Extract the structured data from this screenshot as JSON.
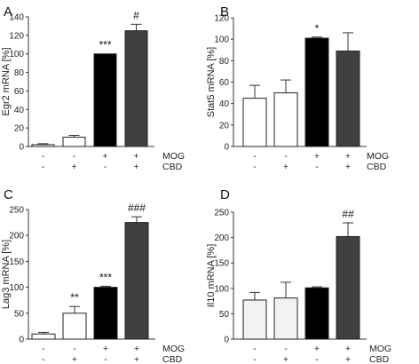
{
  "chart_data": [
    {
      "type": "bar",
      "panel_label": "A",
      "ylabel": "Egr2 mRNA [%]",
      "ylim": [
        0,
        140
      ],
      "yticks": [
        0,
        20,
        40,
        60,
        80,
        100,
        120,
        140
      ],
      "values": [
        2,
        10,
        100,
        125
      ],
      "errors": [
        1,
        2,
        0,
        7
      ],
      "annotations": [
        "",
        "",
        "***",
        "#"
      ],
      "colors": [
        "#ffffff",
        "#ffffff",
        "#000000",
        "#404040"
      ],
      "conditions": [
        {
          "label": "MOG",
          "signs": [
            "-",
            "-",
            "+",
            "+"
          ]
        },
        {
          "label": "CBD",
          "signs": [
            "-",
            "+",
            "-",
            "+"
          ]
        }
      ]
    },
    {
      "type": "bar",
      "panel_label": "B",
      "ylabel": "Stat5 mRNA [%]",
      "ylim": [
        0,
        120
      ],
      "yticks": [
        0,
        20,
        40,
        60,
        80,
        100,
        120
      ],
      "values": [
        45,
        50,
        101,
        89
      ],
      "errors": [
        12,
        12,
        1,
        17
      ],
      "annotations": [
        "",
        "",
        "*",
        ""
      ],
      "colors": [
        "#ffffff",
        "#ffffff",
        "#000000",
        "#404040"
      ],
      "conditions": [
        {
          "label": "MOG",
          "signs": [
            "-",
            "-",
            "+",
            "+"
          ]
        },
        {
          "label": "CBD",
          "signs": [
            "-",
            "+",
            "-",
            "+"
          ]
        }
      ]
    },
    {
      "type": "bar",
      "panel_label": "C",
      "ylabel": "Lag3 mRNA [%]",
      "ylim": [
        0,
        250
      ],
      "yticks": [
        0,
        50,
        100,
        150,
        200,
        250
      ],
      "values": [
        10,
        50,
        100,
        225
      ],
      "errors": [
        3,
        13,
        2,
        11
      ],
      "annotations": [
        "",
        "**",
        "***",
        "###"
      ],
      "colors": [
        "#ffffff",
        "#ffffff",
        "#000000",
        "#404040"
      ],
      "conditions": [
        {
          "label": "MOG",
          "signs": [
            "-",
            "-",
            "+",
            "+"
          ]
        },
        {
          "label": "CBD",
          "signs": [
            "-",
            "+",
            "-",
            "+"
          ]
        }
      ]
    },
    {
      "type": "bar",
      "panel_label": "D",
      "ylabel": "Il10 mRNA [%]",
      "ylim": [
        0,
        250
      ],
      "yticks": [
        0,
        50,
        100,
        150,
        200,
        250
      ],
      "values": [
        77,
        81,
        101,
        202
      ],
      "errors": [
        15,
        31,
        2,
        27
      ],
      "annotations": [
        "",
        "",
        "",
        "##"
      ],
      "colors": [
        "#f2f2f2",
        "#f2f2f2",
        "#000000",
        "#404040"
      ],
      "conditions": [
        {
          "label": "MOG",
          "signs": [
            "-",
            "-",
            "+",
            "+"
          ]
        },
        {
          "label": "CBD",
          "signs": [
            "-",
            "+",
            "-",
            "+"
          ]
        }
      ]
    }
  ]
}
